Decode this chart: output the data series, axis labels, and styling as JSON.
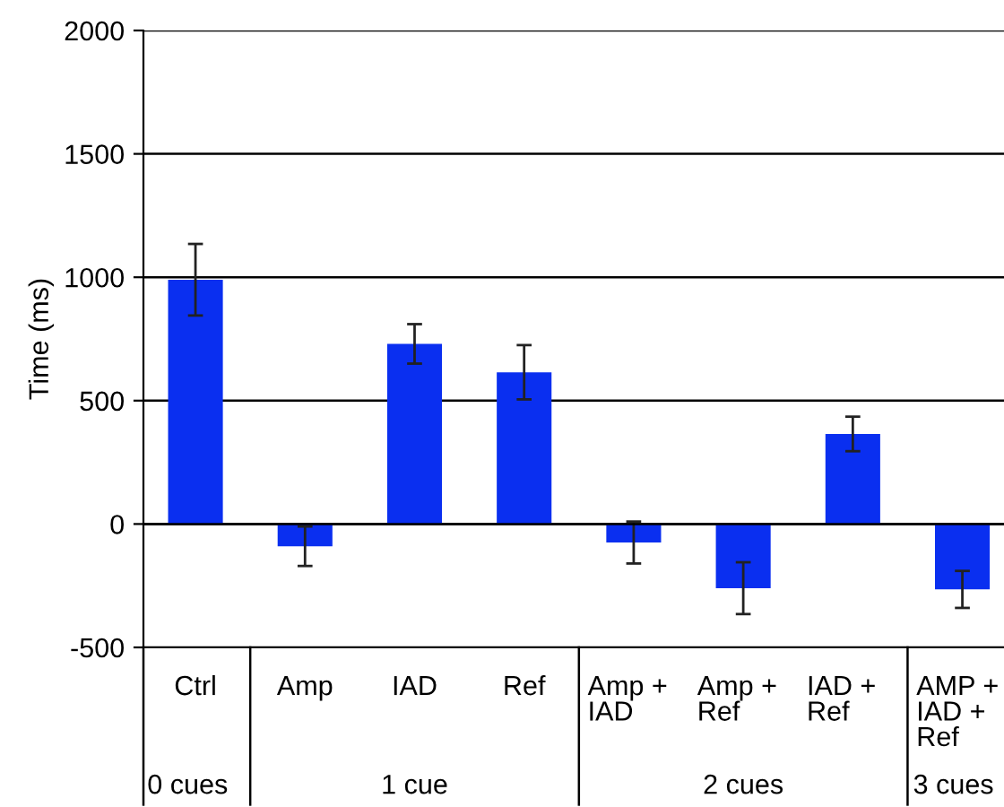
{
  "chart_data": {
    "type": "bar",
    "ylabel": "Time (ms)",
    "categories": [
      "Ctrl",
      "Amp",
      "IAD",
      "Ref",
      "Amp +\nIAD",
      "Amp +\nRef",
      "IAD +\nRef",
      "AMP +\nIAD +\nRef"
    ],
    "values": [
      990,
      -90,
      730,
      615,
      -75,
      -260,
      365,
      -265
    ],
    "errors": [
      145,
      80,
      80,
      110,
      85,
      105,
      70,
      75
    ],
    "color": "#0a2ff0",
    "ylim": [
      -500,
      2000
    ],
    "yticks": [
      -500,
      0,
      500,
      1000,
      1500,
      2000
    ],
    "grid": "y",
    "annotations": [
      "0 cues",
      "1 cue",
      "2 cues",
      "3 cues"
    ]
  }
}
